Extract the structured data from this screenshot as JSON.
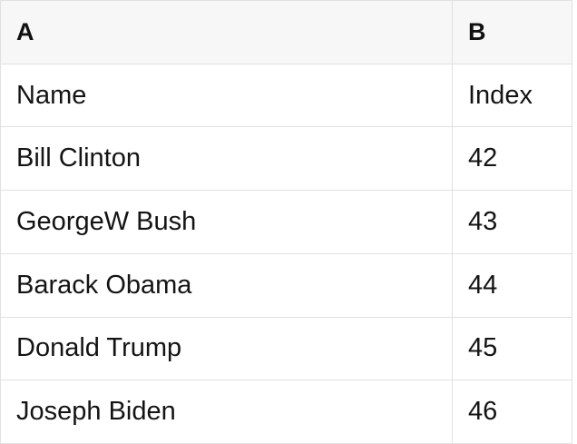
{
  "table": {
    "headers": {
      "a": "A",
      "b": "B"
    },
    "rows": [
      {
        "a": "Name",
        "b": "Index"
      },
      {
        "a": "Bill Clinton",
        "b": "42"
      },
      {
        "a": "GeorgeW Bush",
        "b": "43"
      },
      {
        "a": "Barack Obama",
        "b": "44"
      },
      {
        "a": "Donald Trump",
        "b": "45"
      },
      {
        "a": "Joseph Biden",
        "b": "46"
      }
    ]
  },
  "colors": {
    "header_background": "#f7f7f7",
    "grid_border": "#e1e1e1",
    "text": "#141414"
  }
}
